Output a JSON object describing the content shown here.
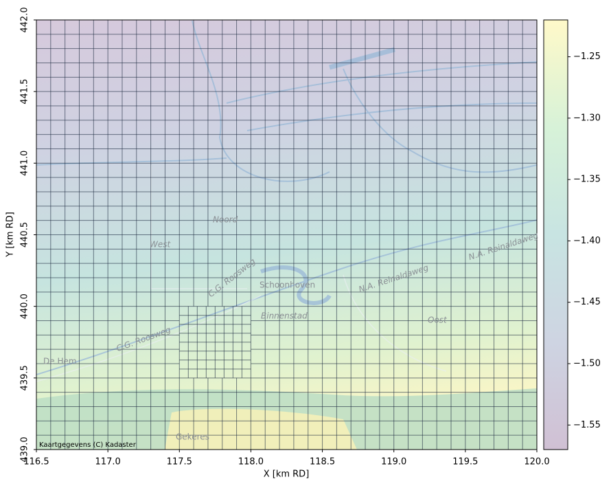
{
  "chart_data": {
    "type": "heatmap",
    "xlabel": "X [km RD]",
    "ylabel": "Y [km RD]",
    "xlim": [
      116.5,
      120.0
    ],
    "ylim": [
      439.0,
      442.0
    ],
    "xticks": [
      {
        "value": 116.5,
        "label": "116.5"
      },
      {
        "value": 117.0,
        "label": "117.0"
      },
      {
        "value": 117.5,
        "label": "117.5"
      },
      {
        "value": 118.0,
        "label": "118.0"
      },
      {
        "value": 118.5,
        "label": "118.5"
      },
      {
        "value": 119.0,
        "label": "119.0"
      },
      {
        "value": 119.5,
        "label": "119.5"
      },
      {
        "value": 120.0,
        "label": "120.0"
      }
    ],
    "yticks": [
      {
        "value": 439.0,
        "label": "439.0"
      },
      {
        "value": 439.5,
        "label": "439.5"
      },
      {
        "value": 440.0,
        "label": "440.0"
      },
      {
        "value": 440.5,
        "label": "440.5"
      },
      {
        "value": 441.0,
        "label": "441.0"
      },
      {
        "value": 441.5,
        "label": "441.5"
      },
      {
        "value": 442.0,
        "label": "442.0"
      }
    ],
    "colormap": "viridis",
    "alpha": 0.25,
    "colorbar": {
      "lim": [
        -1.57,
        -1.22
      ],
      "ticks": [
        {
          "value": -1.55,
          "label": "−1.55"
        },
        {
          "value": -1.5,
          "label": "−1.50"
        },
        {
          "value": -1.45,
          "label": "−1.45"
        },
        {
          "value": -1.4,
          "label": "−1.40"
        },
        {
          "value": -1.35,
          "label": "−1.35"
        },
        {
          "value": -1.3,
          "label": "−1.30"
        },
        {
          "value": -1.25,
          "label": "−1.25"
        }
      ]
    },
    "attribution": "Kaartgegevens (C) Kadaster",
    "map_labels": [
      "Noord",
      "West",
      "C.G. Roosweg",
      "Schoonhoven",
      "Binnenstad",
      "N.A. Reinaldaweg",
      "N.A. Reinaldaweg",
      "Oost",
      "C.G. Roosweg",
      "De Hem",
      "Gekeres"
    ]
  }
}
